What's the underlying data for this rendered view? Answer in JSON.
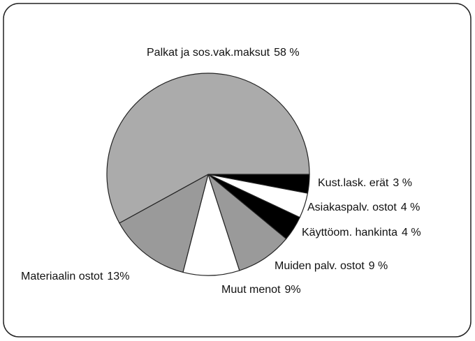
{
  "chart_data": {
    "type": "pie",
    "categories": [
      "Kust.lask. erät",
      "Asiakaspalv. ostot",
      "Käyttöom. hankinta",
      "Muiden palv. ostot",
      "Muut menot",
      "Materiaalin ostot",
      "Palkat ja sos.vak.maksut"
    ],
    "values": [
      3,
      4,
      4,
      9,
      9,
      13,
      58
    ],
    "value_labels": [
      "3 %",
      "4 %",
      "4 %",
      "9 %",
      "9%",
      "13%",
      "58 %"
    ],
    "colors": [
      "#000000",
      "#ffffff",
      "#000000",
      "#9a9a9a",
      "#ffffff",
      "#9a9a9a",
      "#ababab"
    ]
  }
}
